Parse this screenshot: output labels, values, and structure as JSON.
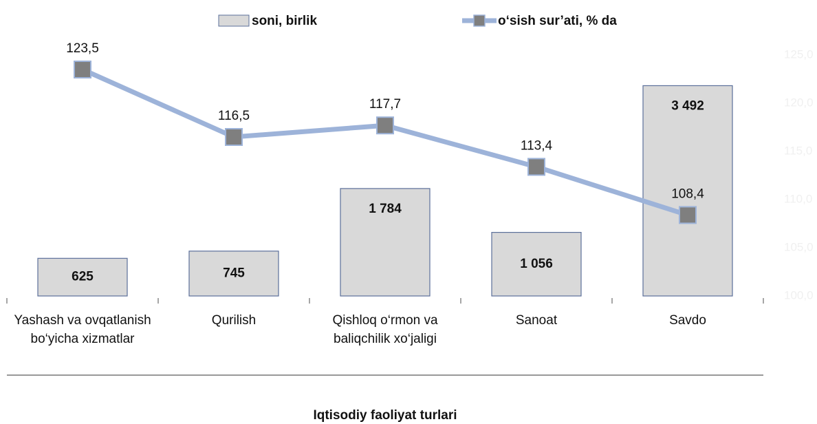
{
  "chart_data": {
    "type": "bar_line",
    "x_label": "Iqtisodiy faoliyat turlari",
    "categories": [
      "Yashash va ovqatlanish bo‘yicha xizmatlar",
      "Qurilish",
      "Qishloq o‘rmon va baliqchilik xo‘jaligi",
      "Sanoat",
      "Savdo"
    ],
    "series": [
      {
        "name": "soni, birlik",
        "type": "bar",
        "color": "#d9d9d9",
        "values": [
          625,
          745,
          1784,
          1056,
          3492
        ],
        "value_labels": [
          "625",
          "745",
          "1 784",
          "1 056",
          "3 492"
        ]
      },
      {
        "name": "o‘sish sur’ati, % da",
        "type": "line",
        "axis": "y2",
        "color": "#9db3d9",
        "marker_color": "#7f7f7f",
        "values": [
          123.5,
          116.5,
          117.7,
          113.4,
          108.4
        ],
        "value_labels": [
          "123,5",
          "116,5",
          "117,7",
          "113,4",
          "108,4"
        ]
      }
    ],
    "ylim": [
      0,
      4000
    ],
    "y2lim": [
      100,
      125
    ],
    "y2ticks": [
      {
        "value": 100,
        "label": "100,0"
      },
      {
        "value": 105,
        "label": "105,0"
      },
      {
        "value": 110,
        "label": "110,0"
      },
      {
        "value": 115,
        "label": "115,0"
      },
      {
        "value": 120,
        "label": "120,0"
      },
      {
        "value": 125,
        "label": "125,0"
      }
    ]
  }
}
